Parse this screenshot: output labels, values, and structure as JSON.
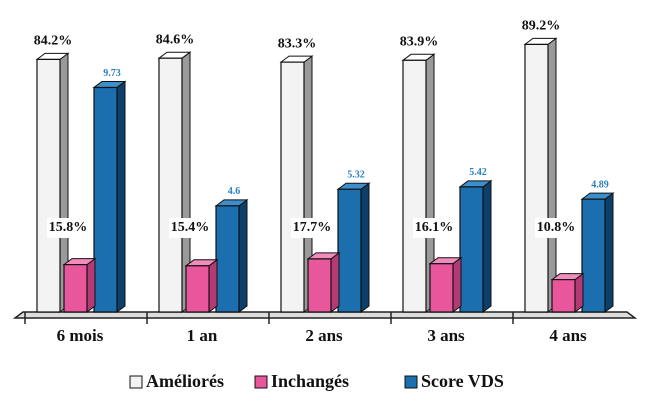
{
  "chart_data": {
    "type": "bar3d",
    "categories": [
      "6 mois",
      "1 an",
      "2 ans",
      "3 ans",
      "4 ans"
    ],
    "series": [
      {
        "name": "Améliorés",
        "color": "#f3f3f3",
        "values": [
          84.2,
          84.6,
          83.3,
          83.9,
          89.2
        ],
        "value_labels": [
          "84.2%",
          "84.6%",
          "83.3%",
          "83.9%",
          "89.2%"
        ]
      },
      {
        "name": "Inchangés",
        "color": "#e8579b",
        "values": [
          15.8,
          15.4,
          17.7,
          16.1,
          10.8
        ],
        "value_labels": [
          "15.8%",
          "15.4%",
          "17.7%",
          "16.1%",
          "10.8%"
        ]
      },
      {
        "name": "Score VDS",
        "color": "#1b6fae",
        "axis": "y2",
        "values": [
          9.73,
          4.6,
          5.32,
          5.42,
          4.89
        ]
      }
    ],
    "ylim": [
      0,
      100
    ],
    "y2lim": [
      0,
      13
    ]
  }
}
